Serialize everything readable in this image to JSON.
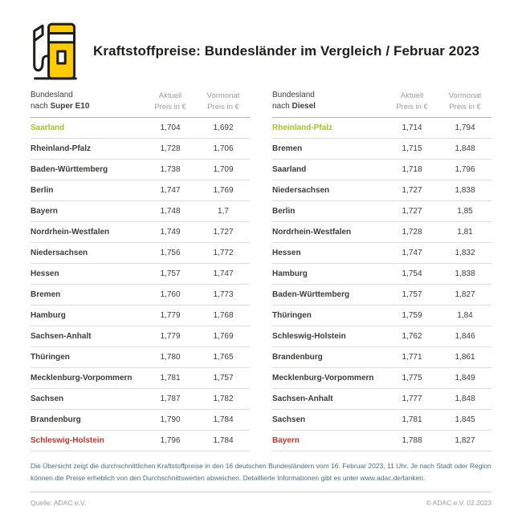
{
  "title": "Kraftstoffpreise: Bundesländer im Vergleich / Februar 2023",
  "icon": "fuel-pump-icon",
  "colors": {
    "brand_yellow": "#ffcc00",
    "outline_dark": "#1d1d1b",
    "highlight_green": "#a3c617",
    "highlight_red": "#cb3428",
    "footnote_teal": "#44707e",
    "muted_gray": "#9b9b9b"
  },
  "columns": {
    "state_line1": "Bundesland",
    "state_prefix": "nach ",
    "current_line1": "Aktuell",
    "current_line2": "Preis in €",
    "previous_line1": "Vormonat",
    "previous_line2": "Preis in €"
  },
  "tables": [
    {
      "fuel": "Super E10",
      "rows": [
        {
          "state": "Saarland",
          "current": "1,704",
          "previous": "1,692",
          "highlight": "green"
        },
        {
          "state": "Rheinland-Pfalz",
          "current": "1,728",
          "previous": "1,706"
        },
        {
          "state": "Baden-Württemberg",
          "current": "1,738",
          "previous": "1,709"
        },
        {
          "state": "Berlin",
          "current": "1,747",
          "previous": "1,769"
        },
        {
          "state": "Bayern",
          "current": "1,748",
          "previous": "1,7"
        },
        {
          "state": "Nordrhein-Westfalen",
          "current": "1,749",
          "previous": "1,727"
        },
        {
          "state": "Niedersachsen",
          "current": "1,756",
          "previous": "1,772"
        },
        {
          "state": "Hessen",
          "current": "1,757",
          "previous": "1,747"
        },
        {
          "state": "Bremen",
          "current": "1,760",
          "previous": "1,773"
        },
        {
          "state": "Hamburg",
          "current": "1,779",
          "previous": "1,768"
        },
        {
          "state": "Sachsen-Anhalt",
          "current": "1,779",
          "previous": "1,769"
        },
        {
          "state": "Thüringen",
          "current": "1,780",
          "previous": "1,765"
        },
        {
          "state": "Mecklenburg-Vorpommern",
          "current": "1,781",
          "previous": "1,757"
        },
        {
          "state": "Sachsen",
          "current": "1,787",
          "previous": "1,782"
        },
        {
          "state": "Brandenburg",
          "current": "1,790",
          "previous": "1,784"
        },
        {
          "state": "Schleswig-Holstein",
          "current": "1,796",
          "previous": "1,784",
          "highlight": "red"
        }
      ]
    },
    {
      "fuel": "Diesel",
      "rows": [
        {
          "state": "Rheinland-Pfalz",
          "current": "1,714",
          "previous": "1,794",
          "highlight": "green"
        },
        {
          "state": "Bremen",
          "current": "1,715",
          "previous": "1,848"
        },
        {
          "state": "Saarland",
          "current": "1,718",
          "previous": "1,796"
        },
        {
          "state": "Niedersachsen",
          "current": "1,727",
          "previous": "1,838"
        },
        {
          "state": "Berlin",
          "current": "1,727",
          "previous": "1,85"
        },
        {
          "state": "Nordrhein-Westfalen",
          "current": "1,728",
          "previous": "1,81"
        },
        {
          "state": "Hessen",
          "current": "1,747",
          "previous": "1,832"
        },
        {
          "state": "Hamburg",
          "current": "1,754",
          "previous": "1,838"
        },
        {
          "state": "Baden-Württemberg",
          "current": "1,757",
          "previous": "1,827"
        },
        {
          "state": "Thüringen",
          "current": "1,759",
          "previous": "1,84"
        },
        {
          "state": "Schleswig-Holstein",
          "current": "1,762",
          "previous": "1,846"
        },
        {
          "state": "Brandenburg",
          "current": "1,771",
          "previous": "1,861"
        },
        {
          "state": "Mecklenburg-Vorpommern",
          "current": "1,775",
          "previous": "1,849"
        },
        {
          "state": "Sachsen-Anhalt",
          "current": "1,777",
          "previous": "1,848"
        },
        {
          "state": "Sachsen",
          "current": "1,781",
          "previous": "1,845"
        },
        {
          "state": "Bayern",
          "current": "1,788",
          "previous": "1,827",
          "highlight": "red"
        }
      ]
    }
  ],
  "chart_data": [
    {
      "type": "table",
      "title": "Bundesland nach Super E10 — Preis in €",
      "columns": [
        "Bundesland",
        "Aktuell Preis in €",
        "Vormonat Preis in €"
      ],
      "rows": [
        [
          "Saarland",
          1.704,
          1.692
        ],
        [
          "Rheinland-Pfalz",
          1.728,
          1.706
        ],
        [
          "Baden-Württemberg",
          1.738,
          1.709
        ],
        [
          "Berlin",
          1.747,
          1.769
        ],
        [
          "Bayern",
          1.748,
          1.7
        ],
        [
          "Nordrhein-Westfalen",
          1.749,
          1.727
        ],
        [
          "Niedersachsen",
          1.756,
          1.772
        ],
        [
          "Hessen",
          1.757,
          1.747
        ],
        [
          "Bremen",
          1.76,
          1.773
        ],
        [
          "Hamburg",
          1.779,
          1.768
        ],
        [
          "Sachsen-Anhalt",
          1.779,
          1.769
        ],
        [
          "Thüringen",
          1.78,
          1.765
        ],
        [
          "Mecklenburg-Vorpommern",
          1.781,
          1.757
        ],
        [
          "Sachsen",
          1.787,
          1.782
        ],
        [
          "Brandenburg",
          1.79,
          1.784
        ],
        [
          "Schleswig-Holstein",
          1.796,
          1.784
        ]
      ],
      "annotations": {
        "cheapest_row_green": "Saarland",
        "most_expensive_row_red": "Schleswig-Holstein"
      }
    },
    {
      "type": "table",
      "title": "Bundesland nach Diesel — Preis in €",
      "columns": [
        "Bundesland",
        "Aktuell Preis in €",
        "Vormonat Preis in €"
      ],
      "rows": [
        [
          "Rheinland-Pfalz",
          1.714,
          1.794
        ],
        [
          "Bremen",
          1.715,
          1.848
        ],
        [
          "Saarland",
          1.718,
          1.796
        ],
        [
          "Niedersachsen",
          1.727,
          1.838
        ],
        [
          "Berlin",
          1.727,
          1.85
        ],
        [
          "Nordrhein-Westfalen",
          1.728,
          1.81
        ],
        [
          "Hessen",
          1.747,
          1.832
        ],
        [
          "Hamburg",
          1.754,
          1.838
        ],
        [
          "Baden-Württemberg",
          1.757,
          1.827
        ],
        [
          "Thüringen",
          1.759,
          1.84
        ],
        [
          "Schleswig-Holstein",
          1.762,
          1.846
        ],
        [
          "Brandenburg",
          1.771,
          1.861
        ],
        [
          "Mecklenburg-Vorpommern",
          1.775,
          1.849
        ],
        [
          "Sachsen-Anhalt",
          1.777,
          1.848
        ],
        [
          "Sachsen",
          1.781,
          1.845
        ],
        [
          "Bayern",
          1.788,
          1.827
        ]
      ],
      "annotations": {
        "cheapest_row_green": "Rheinland-Pfalz",
        "most_expensive_row_red": "Bayern"
      }
    }
  ],
  "footnote": "Die Übersicht zeigt die durchschnittlichen Kraftstoffpreise in den 16 deutschen Bundesländern vom 16. Februar 2023, 11 Uhr. Je nach Stadt oder Region können die Preise erheblich von den Durchschnittswerten abweichen. Detaillierte Informationen gibt es unter www.adac.de/tanken.",
  "footer": {
    "source": "Quelle: ADAC e.V.",
    "copyright": "© ADAC e.V. 02.2023"
  }
}
